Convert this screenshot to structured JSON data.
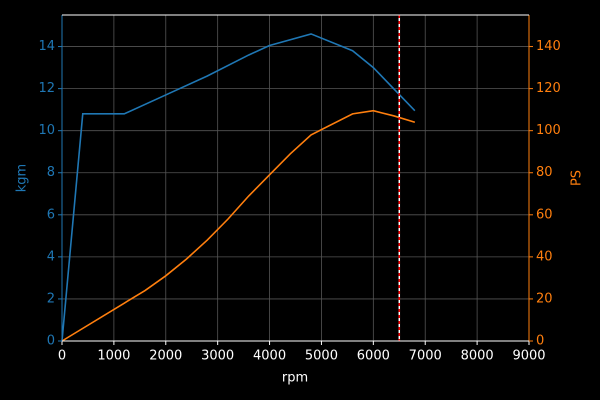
{
  "chart_data": {
    "type": "line",
    "xlabel": "rpm",
    "ylabel": "kgm",
    "y2label": "PS",
    "xlim": [
      0,
      9000
    ],
    "xticks": [
      0,
      1000,
      2000,
      3000,
      4000,
      5000,
      6000,
      7000,
      8000,
      9000
    ],
    "ylim": [
      0,
      15.5
    ],
    "yticks": [
      0,
      2,
      4,
      6,
      8,
      10,
      12,
      14
    ],
    "y2lim": [
      0,
      155
    ],
    "y2ticks": [
      0,
      20,
      40,
      60,
      80,
      100,
      120,
      140
    ],
    "grid": true,
    "series": [
      {
        "color": "#1f77b4",
        "axis": "y",
        "x": [
          0,
          400,
          1200,
          2000,
          2800,
          3600,
          4000,
          4800,
          5600,
          6000,
          6800
        ],
        "values": [
          0,
          10.8,
          10.8,
          11.7,
          12.6,
          13.6,
          14.05,
          14.6,
          13.8,
          13.0,
          10.95
        ]
      },
      {
        "color": "#ff7f0e",
        "axis": "y2",
        "x": [
          0,
          1200,
          1600,
          2000,
          2400,
          2800,
          3200,
          3600,
          4000,
          4400,
          4800,
          5600,
          6000,
          6400,
          6800
        ],
        "values": [
          0,
          18,
          24,
          31,
          39,
          48,
          58,
          69,
          79,
          89,
          98,
          108,
          109.5,
          107,
          104
        ]
      }
    ],
    "vline": {
      "x": 6500,
      "color": "#ffffff",
      "dash_color": "#ff0000"
    }
  }
}
